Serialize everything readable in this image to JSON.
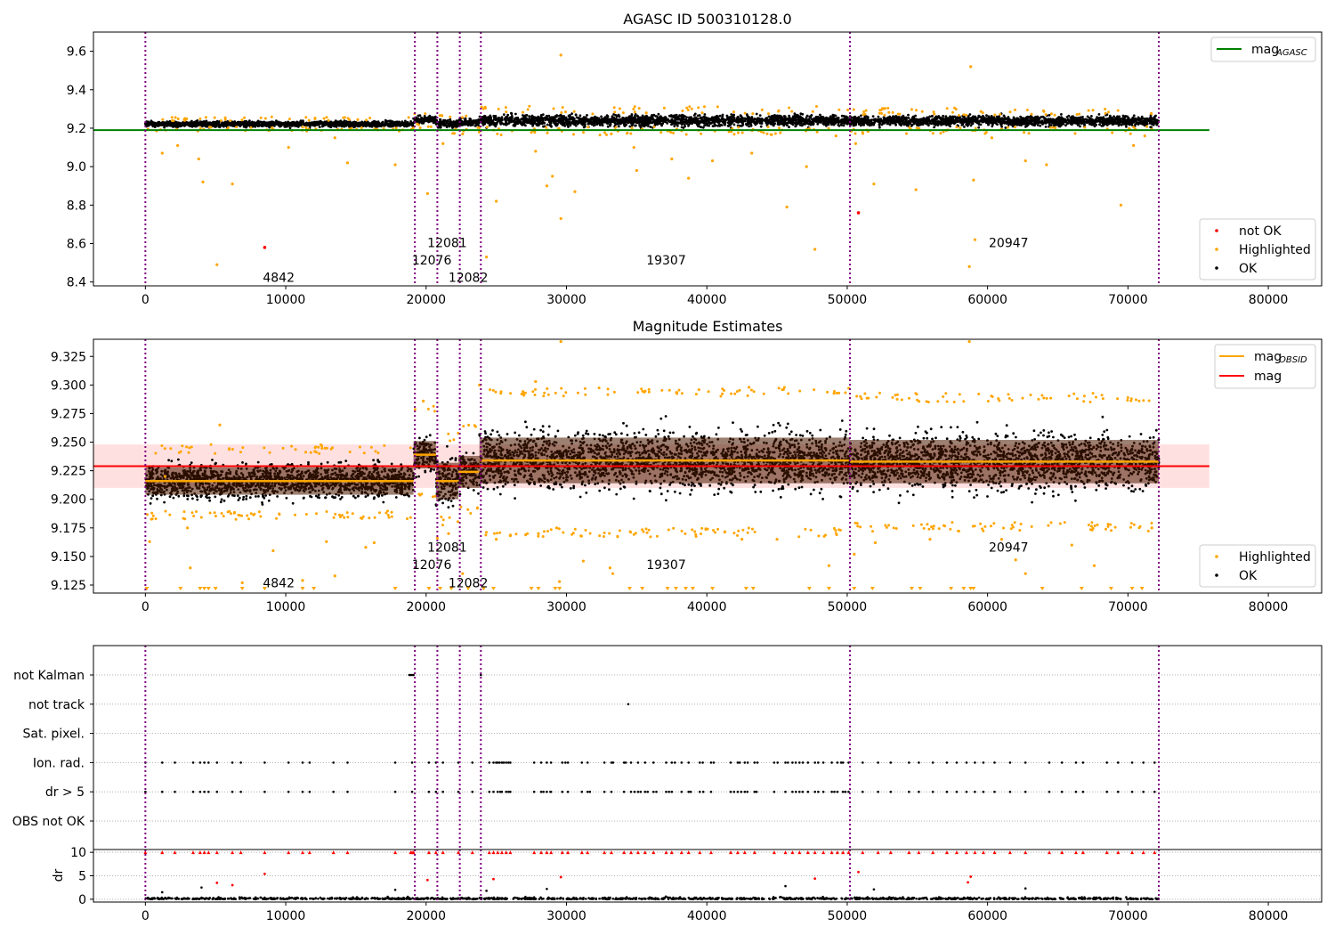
{
  "chart_data": [
    {
      "type": "scatter",
      "title": "AGASC ID 500310128.0",
      "xlabel": "",
      "ylabel": "",
      "xlim": [
        -3700,
        83800
      ],
      "ylim": [
        8.38,
        9.7
      ],
      "xticks": [
        0,
        10000,
        20000,
        30000,
        40000,
        50000,
        60000,
        70000,
        80000
      ],
      "yticks": [
        8.4,
        8.6,
        8.8,
        9.0,
        9.2,
        9.4,
        9.6
      ],
      "grid": false,
      "legend_upper": {
        "placement": "top-right",
        "entries": [
          {
            "label": "mag",
            "sub": "AGASC",
            "color": "#008000"
          }
        ]
      },
      "legend_lower": {
        "placement": "bottom-right",
        "entries": [
          {
            "label": "not OK",
            "color": "#ff0000"
          },
          {
            "label": "Highlighted",
            "color": "#ffa500"
          },
          {
            "label": "OK",
            "color": "#000000"
          }
        ]
      },
      "hlines": [
        {
          "name": "mag_AGASC",
          "y": 9.19,
          "x0": -3700,
          "x1": 75800,
          "color": "#008000"
        }
      ],
      "segments": [
        {
          "x0": 0,
          "x1": 19100,
          "center": 9.222,
          "spread": 0.018
        },
        {
          "x0": 19100,
          "x1": 20700,
          "center": 9.245,
          "spread": 0.022
        },
        {
          "x0": 20700,
          "x1": 22300,
          "center": 9.225,
          "spread": 0.028
        },
        {
          "x0": 22300,
          "x1": 23800,
          "center": 9.23,
          "spread": 0.025
        },
        {
          "x0": 23800,
          "x1": 50200,
          "center": 9.24,
          "spread": 0.036
        },
        {
          "x0": 50200,
          "x1": 72200,
          "center": 9.238,
          "spread": 0.032
        }
      ],
      "vlines": [
        0,
        19200,
        20800,
        22400,
        23900,
        50200,
        72200
      ],
      "annotations": [
        {
          "text": "4842",
          "x": 9500,
          "y": 8.425
        },
        {
          "text": "12076",
          "x": 20400,
          "y": 8.515
        },
        {
          "text": "12081",
          "x": 21500,
          "y": 8.605
        },
        {
          "text": "12082",
          "x": 23000,
          "y": 8.425
        },
        {
          "text": "19307",
          "x": 37100,
          "y": 8.515
        },
        {
          "text": "20947",
          "x": 61500,
          "y": 8.605
        }
      ],
      "highlighted_points": [
        {
          "x": 1200,
          "y": 9.07
        },
        {
          "x": 2300,
          "y": 9.11
        },
        {
          "x": 3800,
          "y": 9.04
        },
        {
          "x": 4100,
          "y": 8.92
        },
        {
          "x": 5100,
          "y": 8.49
        },
        {
          "x": 6200,
          "y": 8.91
        },
        {
          "x": 10200,
          "y": 9.1
        },
        {
          "x": 13500,
          "y": 9.15
        },
        {
          "x": 14400,
          "y": 9.02
        },
        {
          "x": 17800,
          "y": 9.01
        },
        {
          "x": 20100,
          "y": 8.86
        },
        {
          "x": 21200,
          "y": 9.12
        },
        {
          "x": 22600,
          "y": 9.17
        },
        {
          "x": 24300,
          "y": 8.53
        },
        {
          "x": 25000,
          "y": 8.82
        },
        {
          "x": 27800,
          "y": 9.08
        },
        {
          "x": 28600,
          "y": 8.9
        },
        {
          "x": 29000,
          "y": 8.95
        },
        {
          "x": 29600,
          "y": 8.73
        },
        {
          "x": 29600,
          "y": 9.58
        },
        {
          "x": 30600,
          "y": 8.87
        },
        {
          "x": 34800,
          "y": 9.1
        },
        {
          "x": 35000,
          "y": 8.98
        },
        {
          "x": 37500,
          "y": 9.04
        },
        {
          "x": 38700,
          "y": 8.94
        },
        {
          "x": 40400,
          "y": 9.03
        },
        {
          "x": 43200,
          "y": 9.07
        },
        {
          "x": 45700,
          "y": 8.79
        },
        {
          "x": 47100,
          "y": 9.0
        },
        {
          "x": 47700,
          "y": 8.57
        },
        {
          "x": 49200,
          "y": 9.16
        },
        {
          "x": 50600,
          "y": 9.12
        },
        {
          "x": 51900,
          "y": 8.91
        },
        {
          "x": 54900,
          "y": 8.88
        },
        {
          "x": 58700,
          "y": 8.48
        },
        {
          "x": 58800,
          "y": 9.52
        },
        {
          "x": 59000,
          "y": 8.93
        },
        {
          "x": 59100,
          "y": 8.62
        },
        {
          "x": 60300,
          "y": 9.15
        },
        {
          "x": 62700,
          "y": 9.03
        },
        {
          "x": 64200,
          "y": 9.01
        },
        {
          "x": 69500,
          "y": 8.8
        },
        {
          "x": 70400,
          "y": 9.11
        },
        {
          "x": 71200,
          "y": 9.16
        }
      ],
      "not_ok_points": [
        {
          "x": 8500,
          "y": 8.58
        },
        {
          "x": 50800,
          "y": 8.76
        }
      ]
    },
    {
      "type": "scatter",
      "title": "Magnitude Estimates",
      "xlabel": "",
      "ylabel": "",
      "xlim": [
        -3700,
        83800
      ],
      "ylim": [
        9.118,
        9.34
      ],
      "xticks": [
        0,
        10000,
        20000,
        30000,
        40000,
        50000,
        60000,
        70000,
        80000
      ],
      "yticks": [
        9.125,
        9.15,
        9.175,
        9.2,
        9.225,
        9.25,
        9.275,
        9.3,
        9.325
      ],
      "ytick_labels": [
        "9.125",
        "9.150",
        "9.175",
        "9.200",
        "9.225",
        "9.250",
        "9.275",
        "9.300",
        "9.325"
      ],
      "grid": false,
      "legend_upper": {
        "placement": "top-right",
        "entries": [
          {
            "label": "mag",
            "sub": "OBSID",
            "color": "#ffa500"
          },
          {
            "label": "mag",
            "sub": "",
            "color": "#ff0000"
          }
        ]
      },
      "legend_lower": {
        "placement": "bottom-right",
        "entries": [
          {
            "label": "Highlighted",
            "color": "#ffa500"
          },
          {
            "label": "OK",
            "color": "#000000"
          }
        ]
      },
      "mag_band": {
        "y0": 9.21,
        "y1": 9.248,
        "x0": -3700,
        "x1": 75800,
        "color": "#ff0000"
      },
      "mag_line": {
        "y": 9.229,
        "x0": -3700,
        "x1": 75800,
        "color": "#ff0000"
      },
      "obsid_segments": [
        {
          "x0": 0,
          "x1": 19100,
          "center": 9.216,
          "spread": 0.012,
          "lo": 9.19,
          "hi": 9.24
        },
        {
          "x0": 19100,
          "x1": 20700,
          "center": 9.239,
          "spread": 0.012,
          "lo": 9.205,
          "hi": 9.275
        },
        {
          "x0": 20700,
          "x1": 22300,
          "center": 9.216,
          "spread": 0.016,
          "lo": 9.185,
          "hi": 9.25
        },
        {
          "x0": 22300,
          "x1": 23800,
          "center": 9.224,
          "spread": 0.014,
          "lo": 9.195,
          "hi": 9.26
        },
        {
          "x0": 23800,
          "x1": 50200,
          "center": 9.234,
          "spread": 0.02,
          "lo": 9.175,
          "hi": 9.29
        },
        {
          "x0": 50200,
          "x1": 72200,
          "center": 9.233,
          "spread": 0.019,
          "lo": 9.18,
          "hi": 9.285
        }
      ],
      "vlines": [
        0,
        19200,
        20800,
        22400,
        23900,
        50200,
        72200
      ],
      "annotations": [
        {
          "text": "4842",
          "x": 9500,
          "y": 9.127
        },
        {
          "text": "12076",
          "x": 20400,
          "y": 9.143
        },
        {
          "text": "12081",
          "x": 21500,
          "y": 9.158
        },
        {
          "text": "12082",
          "x": 23000,
          "y": 9.127
        },
        {
          "text": "19307",
          "x": 37100,
          "y": 9.143
        },
        {
          "text": "20947",
          "x": 61500,
          "y": 9.158
        }
      ],
      "highlighted_points": [
        {
          "x": 300,
          "y": 9.163
        },
        {
          "x": 1400,
          "y": 9.22
        },
        {
          "x": 3000,
          "y": 9.175
        },
        {
          "x": 3200,
          "y": 9.14
        },
        {
          "x": 5300,
          "y": 9.265
        },
        {
          "x": 6900,
          "y": 9.127
        },
        {
          "x": 9100,
          "y": 9.155
        },
        {
          "x": 11200,
          "y": 9.129
        },
        {
          "x": 12900,
          "y": 9.163
        },
        {
          "x": 13500,
          "y": 9.133
        },
        {
          "x": 15700,
          "y": 9.158
        },
        {
          "x": 16300,
          "y": 9.162
        },
        {
          "x": 19800,
          "y": 9.286
        },
        {
          "x": 20800,
          "y": 9.166
        },
        {
          "x": 21600,
          "y": 9.17
        },
        {
          "x": 22600,
          "y": 9.135
        },
        {
          "x": 23800,
          "y": 9.3
        },
        {
          "x": 25000,
          "y": 9.165
        },
        {
          "x": 27800,
          "y": 9.303
        },
        {
          "x": 28000,
          "y": 9.17
        },
        {
          "x": 29300,
          "y": 9.175
        },
        {
          "x": 29500,
          "y": 9.128
        },
        {
          "x": 29600,
          "y": 9.338
        },
        {
          "x": 31200,
          "y": 9.146
        },
        {
          "x": 33100,
          "y": 9.14
        },
        {
          "x": 33300,
          "y": 9.135
        },
        {
          "x": 42500,
          "y": 9.165
        },
        {
          "x": 43000,
          "y": 9.298
        },
        {
          "x": 45000,
          "y": 9.165
        },
        {
          "x": 48700,
          "y": 9.142
        },
        {
          "x": 50500,
          "y": 9.152
        },
        {
          "x": 52000,
          "y": 9.162
        },
        {
          "x": 55900,
          "y": 9.165
        },
        {
          "x": 58700,
          "y": 9.338
        },
        {
          "x": 61000,
          "y": 9.165
        },
        {
          "x": 62000,
          "y": 9.147
        },
        {
          "x": 62700,
          "y": 9.135
        },
        {
          "x": 66000,
          "y": 9.16
        },
        {
          "x": 67600,
          "y": 9.142
        },
        {
          "x": 71700,
          "y": 9.175
        }
      ],
      "clipped_low_x": [
        100,
        2500,
        3900,
        4200,
        4500,
        5000,
        6900,
        8500,
        11200,
        12000,
        17800,
        20200,
        21000,
        21800,
        23000,
        24100,
        24800,
        27500,
        28000,
        29200,
        29500,
        34500,
        35400,
        37200,
        37800,
        38500,
        39000,
        40400,
        42800,
        43300,
        47300,
        48700,
        50500,
        51800,
        54600,
        55200,
        57400,
        58300,
        58800,
        59000,
        63900,
        66700,
        68800,
        70300,
        71000
      ]
    },
    {
      "type": "scatter",
      "title": "",
      "xlabel": "",
      "ylabel": "",
      "xlim": [
        -3700,
        83800
      ],
      "categories": [
        "not Kalman",
        "not track",
        "Sat. pixel.",
        "Ion. rad.",
        "dr > 5",
        "OBS not OK"
      ],
      "grid": true,
      "vlines": [
        0,
        19200,
        20800,
        22400,
        23900,
        50200,
        72200
      ],
      "not_kalman_x": [
        18800,
        18900,
        19000,
        19100,
        23900
      ],
      "not_track_x": [
        34400
      ],
      "ion_rad_x": [
        0,
        1200,
        2100,
        3400,
        3900,
        4200,
        4500,
        5100,
        6200,
        6800,
        8500,
        10200,
        11200,
        11700,
        13400,
        14400,
        17800,
        19000,
        20200,
        20700,
        21200,
        22300,
        23300,
        24500,
        24800,
        25100,
        25400,
        25700,
        26000,
        27700,
        28200,
        28600,
        28900,
        29700,
        30100,
        31100,
        31500,
        32700,
        33200,
        34100,
        34600,
        35100,
        35600,
        36200,
        37100,
        37500,
        38200,
        38700,
        39500,
        40300,
        41700,
        42200,
        42700,
        43400,
        44800,
        45600,
        46100,
        46600,
        47200,
        47700,
        48300,
        48900,
        49300,
        49700,
        50100,
        51100,
        52200,
        53100,
        54400,
        55100,
        56100,
        57100,
        57800,
        58500,
        59100,
        59700,
        60500,
        61600,
        62700,
        64400,
        65300,
        66300,
        66800,
        68500,
        69300,
        70300,
        71100,
        71900
      ],
      "dr_gt_5_x": [
        0,
        1200,
        2100,
        3400,
        3900,
        4200,
        4500,
        5100,
        6200,
        6800,
        8500,
        10200,
        11200,
        11700,
        13400,
        14400,
        17800,
        19000,
        20200,
        20700,
        21200,
        22300,
        23300,
        24500,
        24800,
        25100,
        25400,
        25700,
        26000,
        27700,
        28200,
        28600,
        28900,
        29700,
        30100,
        31100,
        31500,
        32700,
        33200,
        34100,
        34600,
        35100,
        35600,
        36200,
        37100,
        37500,
        38200,
        38700,
        39500,
        40300,
        41700,
        42200,
        42700,
        43400,
        44800,
        45600,
        46100,
        46600,
        47200,
        47700,
        48300,
        48900,
        49300,
        49700,
        50100,
        51100,
        52200,
        53100,
        54400,
        55100,
        56100,
        57100,
        57800,
        58500,
        59100,
        59700,
        60500,
        61600,
        62700,
        64400,
        65300,
        66300,
        66800,
        68500,
        69300,
        70300,
        71100,
        71900
      ]
    },
    {
      "type": "scatter",
      "title": "",
      "xlabel": "",
      "ylabel": "dr",
      "xlim": [
        -3700,
        83800
      ],
      "ylim": [
        -0.6,
        10.6
      ],
      "xticks": [
        0,
        10000,
        20000,
        30000,
        40000,
        50000,
        60000,
        70000,
        80000
      ],
      "yticks": [
        0,
        5,
        10
      ],
      "grid": true,
      "vlines": [
        0,
        19200,
        20800,
        22400,
        23900,
        50200,
        72200
      ],
      "clipped_high_x": [
        0,
        1200,
        2100,
        3400,
        3900,
        4200,
        4500,
        5100,
        6200,
        6800,
        8500,
        10200,
        11200,
        11700,
        13400,
        14400,
        17800,
        18900,
        19000,
        19100,
        20200,
        20700,
        21200,
        22300,
        23300,
        24500,
        24800,
        25100,
        25400,
        25700,
        26000,
        27700,
        28200,
        28600,
        28900,
        29700,
        30100,
        31100,
        31500,
        32700,
        33200,
        34100,
        34600,
        35100,
        35600,
        36200,
        37100,
        37500,
        38200,
        38700,
        39500,
        40300,
        41700,
        42200,
        42700,
        43400,
        44800,
        45600,
        46100,
        46600,
        47200,
        47700,
        48300,
        48900,
        49300,
        49700,
        50100,
        51100,
        52200,
        53100,
        54400,
        55100,
        56100,
        57100,
        57800,
        58500,
        59100,
        59700,
        60500,
        61600,
        62700,
        64400,
        65300,
        66300,
        66800,
        68500,
        69300,
        70300,
        71100,
        71900
      ],
      "red_points": [
        {
          "x": 5100,
          "y": 3.5
        },
        {
          "x": 6200,
          "y": 3.0
        },
        {
          "x": 8500,
          "y": 5.4
        },
        {
          "x": 20100,
          "y": 4.1
        },
        {
          "x": 24800,
          "y": 4.3
        },
        {
          "x": 29600,
          "y": 4.7
        },
        {
          "x": 47700,
          "y": 4.4
        },
        {
          "x": 50800,
          "y": 5.8
        },
        {
          "x": 58800,
          "y": 4.8
        },
        {
          "x": 58600,
          "y": 3.6
        }
      ],
      "black_outliers": [
        {
          "x": 1200,
          "y": 1.5
        },
        {
          "x": 4000,
          "y": 2.5
        },
        {
          "x": 17800,
          "y": 2.0
        },
        {
          "x": 24300,
          "y": 1.8
        },
        {
          "x": 28600,
          "y": 2.2
        },
        {
          "x": 45600,
          "y": 2.8
        },
        {
          "x": 51900,
          "y": 2.1
        },
        {
          "x": 62700,
          "y": 2.3
        }
      ]
    }
  ]
}
